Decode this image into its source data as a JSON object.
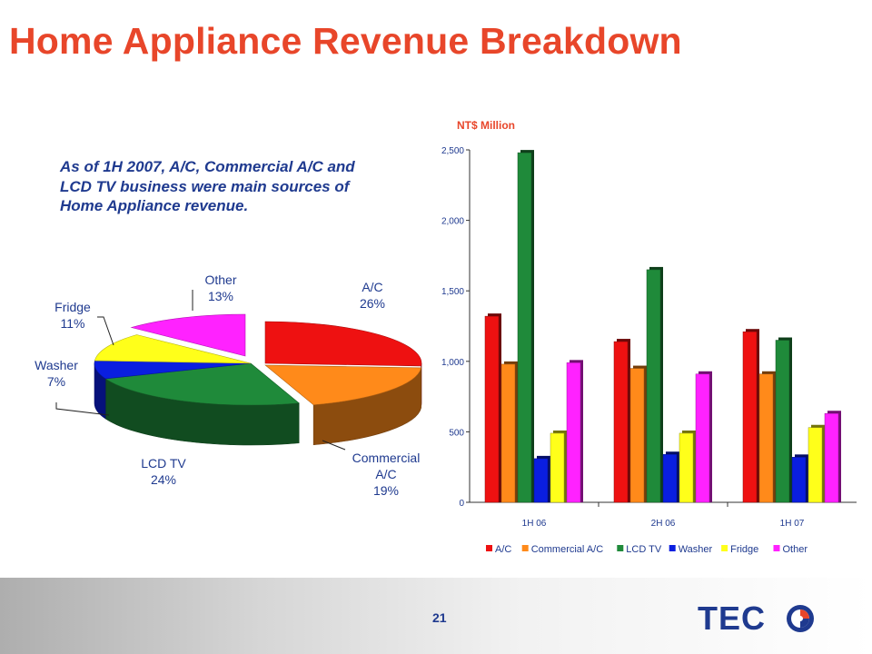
{
  "slide": {
    "title": "Home Appliance Revenue Breakdown",
    "summary": "As of 1H 2007, A/C, Commercial A/C and LCD TV business were main sources of Home Appliance revenue.",
    "page_number": "21",
    "logo_text": "TECO"
  },
  "colors": {
    "title": "#e8462a",
    "text": "#1f3a8f",
    "A/C": "#ee1111",
    "Commercial A/C": "#ff8a1a",
    "LCD TV": "#1f8a3a",
    "Washer": "#0a1ee0",
    "Fridge": "#ffff1a",
    "Other": "#ff22ff"
  },
  "chart_data": [
    {
      "type": "pie",
      "title": "",
      "slices": [
        {
          "label": "A/C",
          "percent_label": "26%",
          "value": 26
        },
        {
          "label": "Commercial A/C",
          "percent_label": "19%",
          "value": 19
        },
        {
          "label": "LCD TV",
          "percent_label": "24%",
          "value": 24
        },
        {
          "label": "Washer",
          "percent_label": "7%",
          "value": 7
        },
        {
          "label": "Fridge",
          "percent_label": "11%",
          "value": 11
        },
        {
          "label": "Other",
          "percent_label": "13%",
          "value": 13
        }
      ]
    },
    {
      "type": "bar",
      "title": "",
      "unit_label": "NT$ Million",
      "xlabel": "",
      "ylabel": "",
      "ylim": [
        0,
        2500
      ],
      "yticks": [
        0,
        500,
        1000,
        1500,
        2000,
        2500
      ],
      "ytick_labels": [
        "0",
        "500",
        "1,000",
        "1,500",
        "2,000",
        "2,500"
      ],
      "categories": [
        "1H 06",
        "2H 06",
        "1H 07"
      ],
      "series": [
        {
          "name": "A/C",
          "values": [
            1320,
            1140,
            1210
          ]
        },
        {
          "name": "Commercial A/C",
          "values": [
            980,
            950,
            910
          ]
        },
        {
          "name": "LCD TV",
          "values": [
            2480,
            1650,
            1150
          ]
        },
        {
          "name": "Washer",
          "values": [
            310,
            340,
            320
          ]
        },
        {
          "name": "Fridge",
          "values": [
            490,
            490,
            530
          ]
        },
        {
          "name": "Other",
          "values": [
            990,
            910,
            630
          ]
        }
      ],
      "legend": "bottom",
      "grid": false
    }
  ]
}
